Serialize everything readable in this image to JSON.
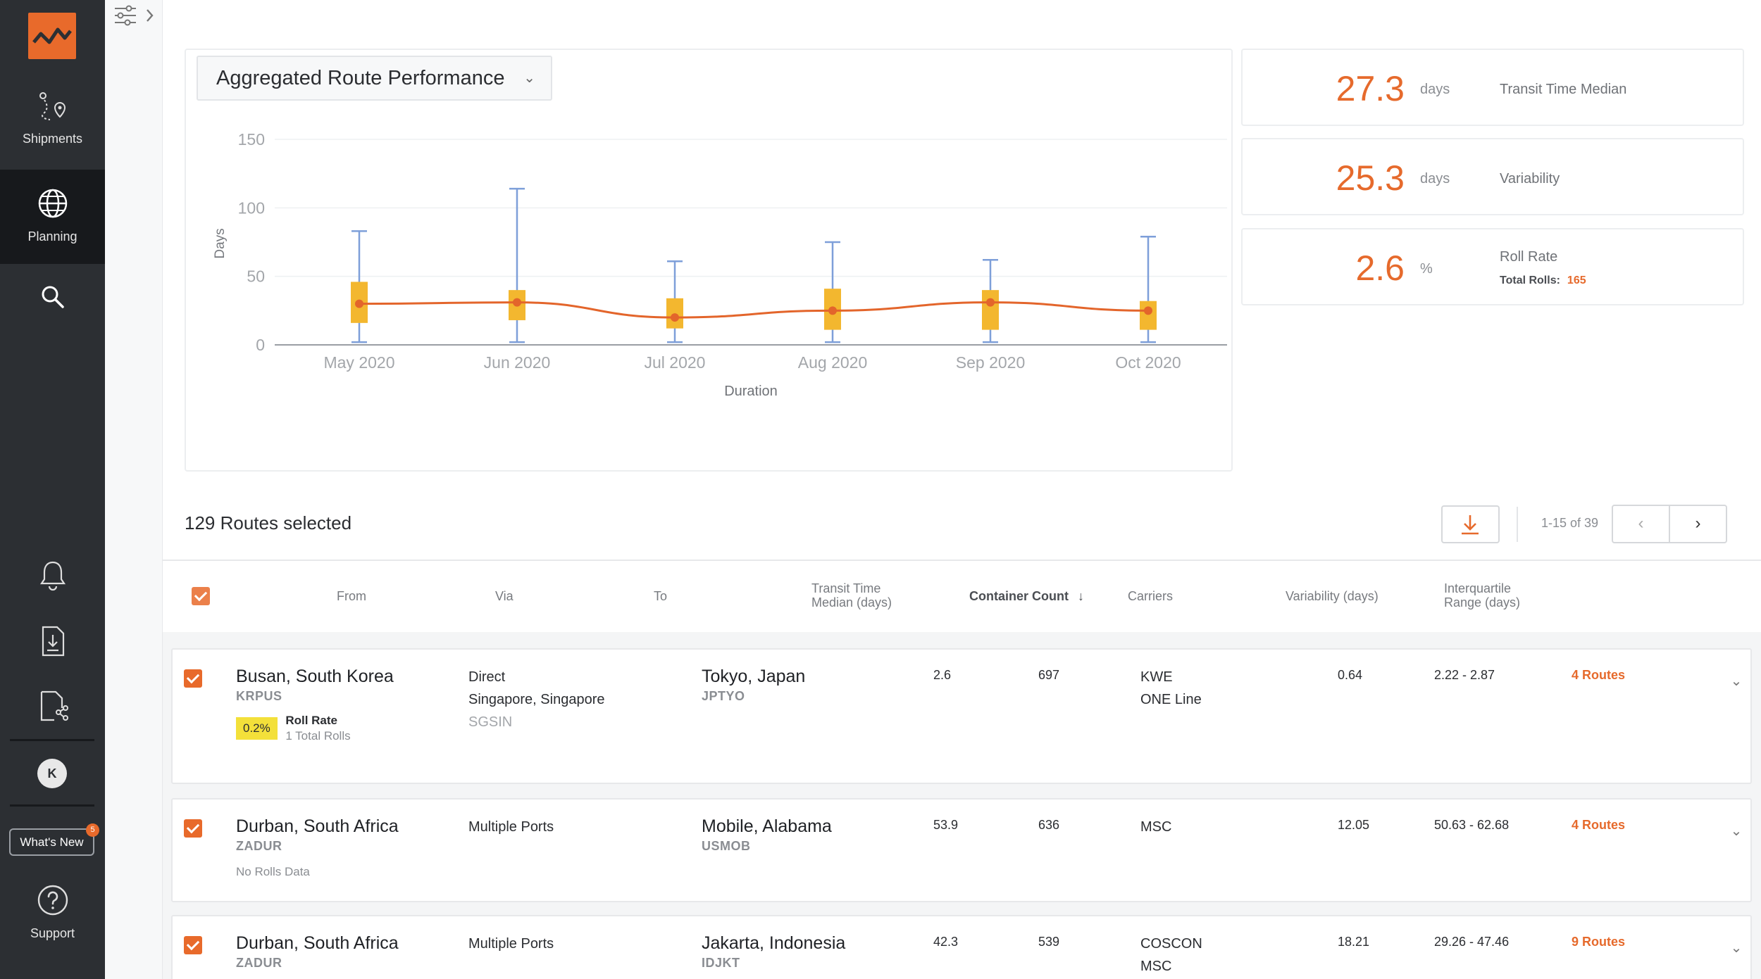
{
  "sidebar": {
    "items": [
      {
        "label": "Shipments",
        "icon": "route-pin-icon"
      },
      {
        "label": "Planning",
        "icon": "globe-icon"
      },
      {
        "label": "",
        "icon": "search-icon"
      }
    ],
    "whats_new": "What's New",
    "whats_new_badge": "5",
    "avatar_initial": "K",
    "support": "Support"
  },
  "chart_panel": {
    "dropdown_label": "Aggregated Route Performance"
  },
  "chart_data": {
    "type": "box",
    "categories": [
      "May 2020",
      "Jun 2020",
      "Jul 2020",
      "Aug 2020",
      "Sep 2020",
      "Oct 2020"
    ],
    "ylabel": "Days",
    "xlabel": "Duration",
    "ylim": [
      0,
      150
    ],
    "yticks": [
      "150",
      "100",
      "50",
      "0"
    ],
    "boxes": [
      {
        "min": 2,
        "q1": 16,
        "median": 30,
        "q3": 46,
        "max": 83
      },
      {
        "min": 2,
        "q1": 18,
        "median": 31,
        "q3": 40,
        "max": 114
      },
      {
        "min": 2,
        "q1": 12,
        "median": 20,
        "q3": 34,
        "max": 61
      },
      {
        "min": 2,
        "q1": 11,
        "median": 25,
        "q3": 41,
        "max": 75
      },
      {
        "min": 2,
        "q1": 11,
        "median": 31,
        "q3": 40,
        "max": 62
      },
      {
        "min": 2,
        "q1": 11,
        "median": 25,
        "q3": 32,
        "max": 79
      }
    ],
    "colors": {
      "box": "#f3b72f",
      "whisker": "#7e9fd9",
      "median_line": "#e3652b",
      "grid": "#eef0f2"
    }
  },
  "kpis": [
    {
      "value": "27.3",
      "unit": "days",
      "name": "Transit Time Median"
    },
    {
      "value": "25.3",
      "unit": "days",
      "name": "Variability"
    },
    {
      "value": "2.6",
      "unit": "%",
      "name": "Roll Rate",
      "sub_label": "Total Rolls:",
      "sub_value": "165"
    }
  ],
  "routes": {
    "count_label": "129 Routes selected",
    "pager_text": "1-15 of 39",
    "columns": {
      "from": "From",
      "via": "Via",
      "to": "To",
      "transit_1": "Transit Time",
      "transit_2": "Median (days)",
      "container": "Container Count",
      "carriers": "Carriers",
      "variability": "Variability (days)",
      "iqr_1": "Interquartile",
      "iqr_2": "Range (days)"
    },
    "rows": [
      {
        "from_city": "Busan, South Korea",
        "from_code": "KRPUS",
        "roll_badge": "0.2%",
        "roll_label": "Roll Rate",
        "roll_sub": "1 Total Rolls",
        "via_1": "Direct",
        "via_2": "Singapore, Singapore",
        "via_code": "SGSIN",
        "to_city": "Tokyo, Japan",
        "to_code": "JPTYO",
        "transit": "2.6",
        "containers": "697",
        "carrier_1": "KWE",
        "carrier_2": "ONE Line",
        "variability": "0.64",
        "iqr": "2.22 - 2.87",
        "routes_link": "4 Routes"
      },
      {
        "from_city": "Durban, South Africa",
        "from_code": "ZADUR",
        "no_rolls": "No Rolls Data",
        "via_1": "Multiple Ports",
        "to_city": "Mobile, Alabama",
        "to_code": "USMOB",
        "transit": "53.9",
        "containers": "636",
        "carrier_1": "MSC",
        "variability": "12.05",
        "iqr": "50.63 - 62.68",
        "routes_link": "4 Routes"
      },
      {
        "from_city": "Durban, South Africa",
        "from_code": "ZADUR",
        "via_1": "Multiple Ports",
        "to_city": "Jakarta, Indonesia",
        "to_code": "IDJKT",
        "transit": "42.3",
        "containers": "539",
        "carrier_1": "COSCON",
        "carrier_2": "MSC",
        "variability": "18.21",
        "iqr": "29.26 - 47.46",
        "routes_link": "9 Routes"
      }
    ]
  }
}
